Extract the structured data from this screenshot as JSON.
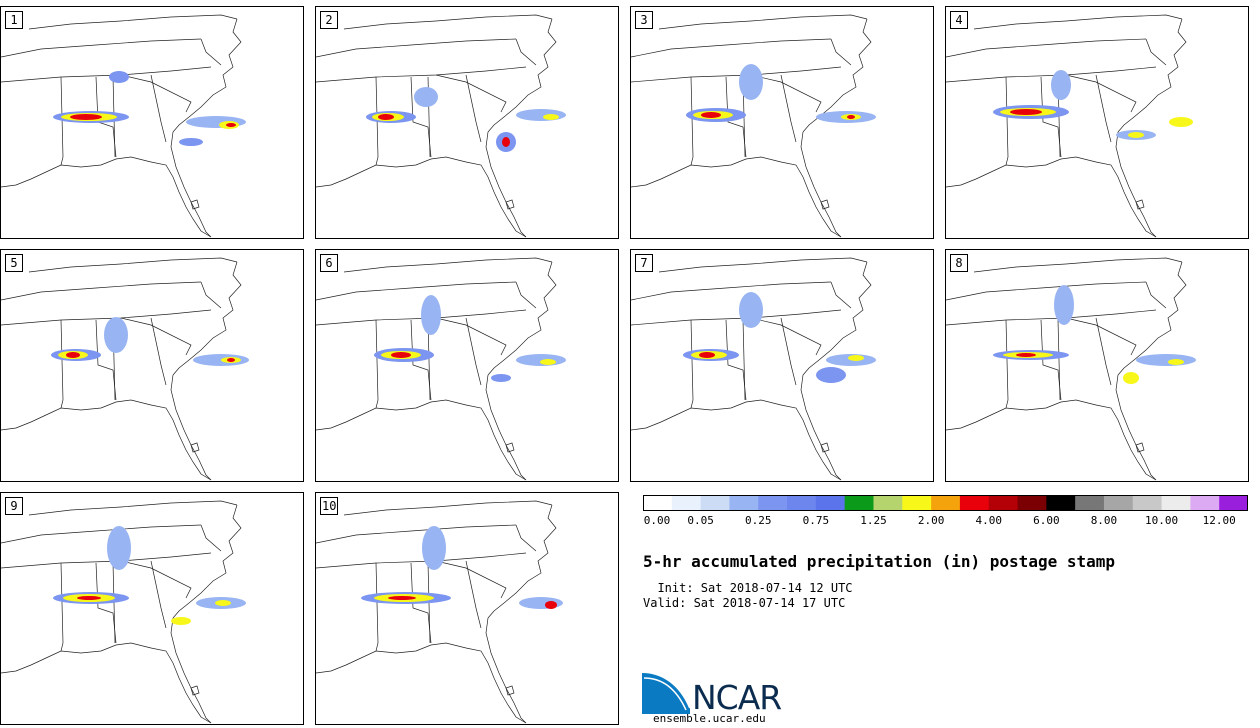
{
  "panels": [
    {
      "label": "1"
    },
    {
      "label": "2"
    },
    {
      "label": "3"
    },
    {
      "label": "4"
    },
    {
      "label": "5"
    },
    {
      "label": "6"
    },
    {
      "label": "7"
    },
    {
      "label": "8"
    },
    {
      "label": "9"
    },
    {
      "label": "10"
    }
  ],
  "legend": {
    "colors": [
      "#ffffff",
      "#e8f1fc",
      "#cddcf5",
      "#98b4f2",
      "#7b95f0",
      "#6c86ee",
      "#5b73eb",
      "#0c9a1a",
      "#b6d46e",
      "#f7f71a",
      "#f5a30c",
      "#e8000b",
      "#b40007",
      "#7a0004",
      "#000000",
      "#777777",
      "#a6a6a6",
      "#c8c8c8",
      "#ececec",
      "#dcaaf2",
      "#9a1fdd"
    ],
    "tick_labels": [
      "0.00",
      "0.05",
      "0.25",
      "0.75",
      "1.25",
      "2.00",
      "4.00",
      "6.00",
      "8.00",
      "10.00",
      "12.00"
    ]
  },
  "title": "5-hr accumulated precipitation (in) postage stamp",
  "init": "  Init: Sat 2018-07-14 12 UTC",
  "valid": "Valid: Sat 2018-07-14 17 UTC",
  "logo": {
    "text": "NCAR",
    "site": "ensemble.ucar.edu"
  }
}
